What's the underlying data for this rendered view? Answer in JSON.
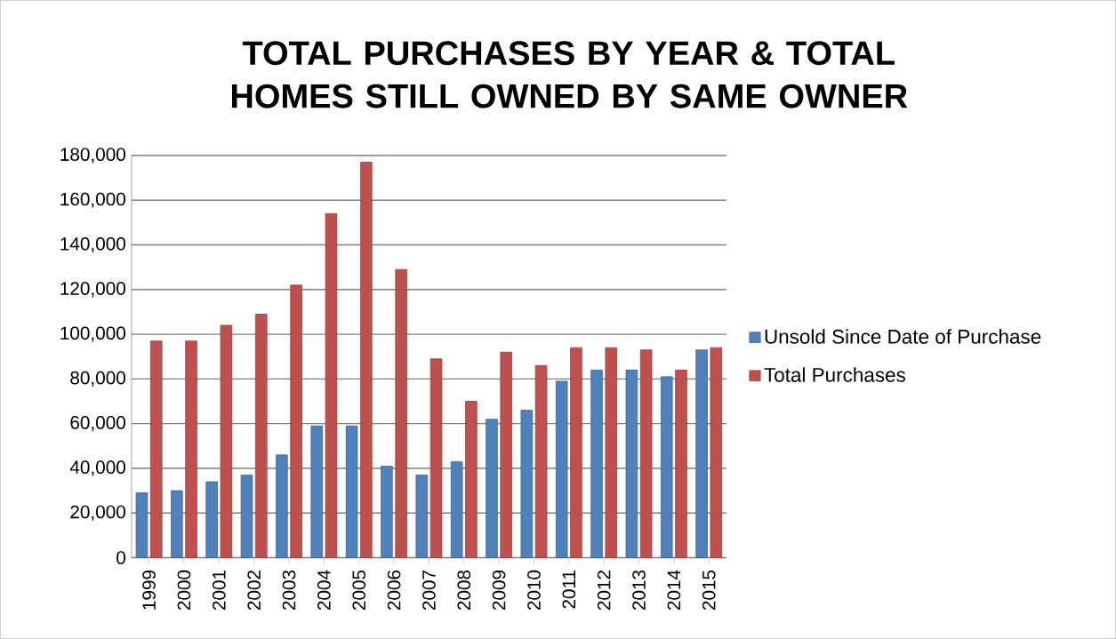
{
  "chart_data": {
    "type": "bar",
    "title": "TOTAL PURCHASES BY YEAR & TOTAL HOMES STILL OWNED BY SAME OWNER",
    "categories": [
      "1999",
      "2000",
      "2001",
      "2002",
      "2003",
      "2004",
      "2005",
      "2006",
      "2007",
      "2008",
      "2009",
      "2010",
      "2011",
      "2012",
      "2013",
      "2014",
      "2015"
    ],
    "series": [
      {
        "name": "Unsold Since Date of Purchase",
        "color": "#4f81bd",
        "values": [
          29000,
          30000,
          34000,
          37000,
          46000,
          59000,
          59000,
          41000,
          37000,
          43000,
          62000,
          66000,
          79000,
          84000,
          84000,
          81000,
          93000
        ]
      },
      {
        "name": "Total Purchases",
        "color": "#c0504d",
        "values": [
          97000,
          97000,
          104000,
          109000,
          122000,
          154000,
          177000,
          129000,
          89000,
          70000,
          92000,
          86000,
          94000,
          94000,
          93000,
          84000,
          94000
        ]
      }
    ],
    "ylim": [
      0,
      180000
    ],
    "yticks": [
      {
        "value": 0,
        "label": "0"
      },
      {
        "value": 20000,
        "label": "20,000"
      },
      {
        "value": 40000,
        "label": "40,000"
      },
      {
        "value": 60000,
        "label": "60,000"
      },
      {
        "value": 80000,
        "label": "80,000"
      },
      {
        "value": 100000,
        "label": "100,000"
      },
      {
        "value": 120000,
        "label": "120,000"
      },
      {
        "value": 140000,
        "label": "140,000"
      },
      {
        "value": 160000,
        "label": "160,000"
      },
      {
        "value": 180000,
        "label": "180,000"
      }
    ],
    "grid": "y",
    "legend": "right"
  }
}
